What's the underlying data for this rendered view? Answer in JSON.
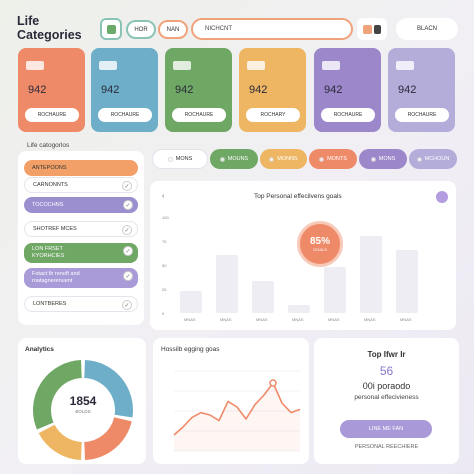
{
  "header": {
    "title_line1": "Life",
    "title_line2": "Categories",
    "btn1": "HOR",
    "btn2": "NAN",
    "search": "NICHCNT",
    "brand_btn": "BLACN"
  },
  "cards": [
    {
      "value": "942",
      "label": "ROCHAURE",
      "color": "#ef8a69"
    },
    {
      "value": "942",
      "label": "ROCHAURE",
      "color": "#6eaec9"
    },
    {
      "value": "942",
      "label": "ROCHAURE",
      "color": "#6fa765"
    },
    {
      "value": "942",
      "label": "ROCHARY",
      "color": "#eeb663"
    },
    {
      "value": "942",
      "label": "ROCHAURE",
      "color": "#9b87c9"
    },
    {
      "value": "942",
      "label": "ROCHAURE",
      "color": "#b4acd9"
    }
  ],
  "sidebar": {
    "label": "Life catogorlos",
    "items": [
      {
        "label": "ANTEPOONS",
        "color": "#f3a068"
      },
      {
        "label": "CARNONNTS",
        "color": "#ffffff"
      },
      {
        "label": "TOCOCHNS",
        "color": "#9b8fd0"
      },
      {
        "label": "SHOTREF MCES",
        "color": "#ffffff"
      },
      {
        "label": "LON FRSET",
        "label2": "KYORHCIES",
        "color": "#6fa765"
      },
      {
        "label": "Fotact fir renoft and",
        "label2": "roatagnerenuent",
        "color": "#9b8fd0"
      },
      {
        "label": "LONTBERES",
        "color": "#ffffff"
      }
    ]
  },
  "tabs": [
    {
      "label": "MONS",
      "color": "#ffffff"
    },
    {
      "label": "MOUNS",
      "color": "#6fa765"
    },
    {
      "label": "MONNS",
      "color": "#eeb663"
    },
    {
      "label": "MONTS",
      "color": "#ef8a69"
    },
    {
      "label": "MONS",
      "color": "#9b87c9"
    },
    {
      "label": "MCHOUN",
      "color": "#b4acd9"
    }
  ],
  "main_chart": {
    "title": "Top Personal effecilvens goals",
    "badge_value": "85%",
    "badge_sub": "GOALS",
    "chart_data": {
      "type": "bar",
      "categories": [
        "MNAS",
        "MNAS",
        "MNAS",
        "MNAS",
        "MNAS",
        "MNAS",
        "MNAS"
      ],
      "values": [
        23,
        60,
        33,
        8,
        48,
        80,
        66
      ],
      "ylim": [
        0,
        100
      ]
    },
    "ylabels": [
      "100",
      "75",
      "50",
      "25",
      "0"
    ]
  },
  "analytics": {
    "title": "Analytics",
    "center_value": "1854",
    "center_sub": "BOLDS",
    "chart_data": {
      "type": "pie",
      "values": [
        28,
        22,
        18,
        32
      ],
      "colors": [
        "#6eaec9",
        "#ef8a69",
        "#eeb663",
        "#6fa765"
      ]
    }
  },
  "line_chart": {
    "title": "Hossilb egging goas",
    "chart_data": {
      "type": "line",
      "values": [
        20,
        30,
        42,
        48,
        45,
        38,
        62,
        55,
        40,
        58,
        70,
        85,
        60,
        48,
        52
      ],
      "ylim": [
        0,
        100
      ]
    }
  },
  "right_panel": {
    "title": "Top Ifwr Ir",
    "big": "56",
    "sub1": "00i poraodo",
    "sub2": "personal effecivieness",
    "button": "LINE ME FAN",
    "footer": "PERSONAL REECHIERE"
  }
}
